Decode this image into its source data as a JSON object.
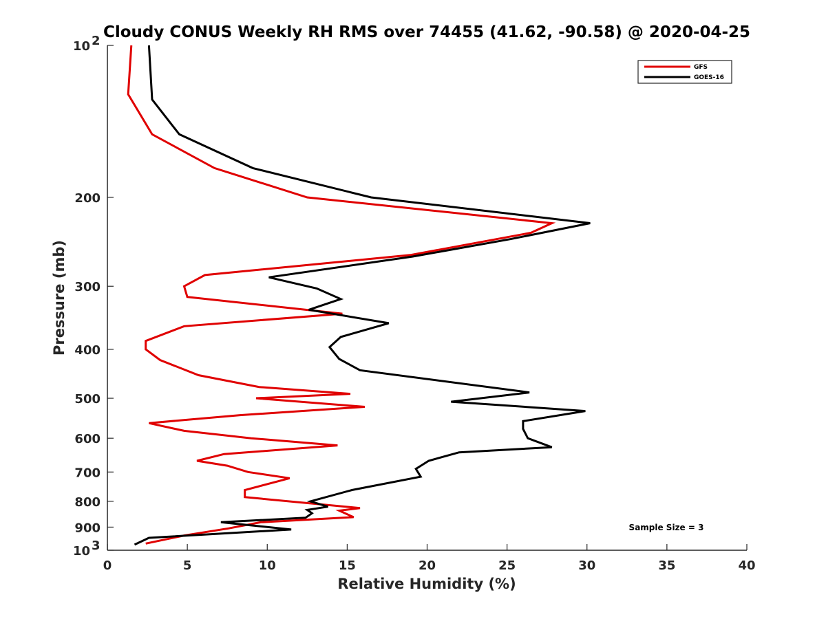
{
  "chart_data": {
    "type": "line",
    "title": "Cloudy CONUS Weekly RH RMS over 74455 (41.62, -90.58) @ 2020-04-25",
    "xlabel": "Relative Humidity (%)",
    "ylabel": "Pressure (mb)",
    "xlim": [
      0,
      40
    ],
    "ylim": [
      100,
      1000
    ],
    "y_scale": "log",
    "y_reversed": true,
    "grid": false,
    "legend_position": "top-right",
    "x_ticks": [
      "0",
      "5",
      "10",
      "15",
      "20",
      "25",
      "30",
      "35",
      "40"
    ],
    "y_ticks": [
      {
        "value": 100,
        "label": "10",
        "sup": "2"
      },
      {
        "value": 200,
        "label": "200"
      },
      {
        "value": 300,
        "label": "300"
      },
      {
        "value": 400,
        "label": "400"
      },
      {
        "value": 500,
        "label": "500"
      },
      {
        "value": 600,
        "label": "600"
      },
      {
        "value": 700,
        "label": "700"
      },
      {
        "value": 800,
        "label": "800"
      },
      {
        "value": 900,
        "label": "900"
      },
      {
        "value": 1000,
        "label": "10",
        "sup": "3"
      }
    ],
    "annotation": "Sample Size = 3",
    "series": [
      {
        "name": "GFS",
        "color": "#e00000",
        "points": [
          [
            1.5,
            100
          ],
          [
            1.3,
            125
          ],
          [
            2.8,
            150
          ],
          [
            6.7,
            175
          ],
          [
            12.5,
            200
          ],
          [
            27.8,
            225
          ],
          [
            26.5,
            235
          ],
          [
            19.0,
            260
          ],
          [
            6.1,
            285
          ],
          [
            4.8,
            300
          ],
          [
            5.0,
            315
          ],
          [
            14.7,
            340
          ],
          [
            4.8,
            360
          ],
          [
            2.4,
            385
          ],
          [
            2.4,
            400
          ],
          [
            3.3,
            420
          ],
          [
            5.7,
            450
          ],
          [
            9.5,
            475
          ],
          [
            15.2,
            490
          ],
          [
            9.3,
            500
          ],
          [
            16.1,
            520
          ],
          [
            8.3,
            540
          ],
          [
            2.6,
            560
          ],
          [
            4.8,
            580
          ],
          [
            9.0,
            600
          ],
          [
            14.4,
            620
          ],
          [
            7.3,
            645
          ],
          [
            5.6,
            665
          ],
          [
            7.5,
            680
          ],
          [
            8.8,
            700
          ],
          [
            11.4,
            720
          ],
          [
            8.6,
            760
          ],
          [
            8.6,
            785
          ],
          [
            15.8,
            825
          ],
          [
            14.5,
            835
          ],
          [
            15.4,
            860
          ],
          [
            9.6,
            880
          ],
          [
            7.6,
            905
          ],
          [
            4.8,
            935
          ],
          [
            2.4,
            970
          ]
        ]
      },
      {
        "name": "GOES-16",
        "color": "#000000",
        "points": [
          [
            2.6,
            100
          ],
          [
            2.8,
            128
          ],
          [
            4.5,
            150
          ],
          [
            9.1,
            175
          ],
          [
            16.5,
            200
          ],
          [
            30.2,
            225
          ],
          [
            25.2,
            242
          ],
          [
            19.1,
            262
          ],
          [
            10.1,
            288
          ],
          [
            13.1,
            303
          ],
          [
            14.6,
            318
          ],
          [
            12.6,
            334
          ],
          [
            17.6,
            355
          ],
          [
            14.6,
            378
          ],
          [
            13.9,
            396
          ],
          [
            14.5,
            418
          ],
          [
            15.8,
            440
          ],
          [
            26.4,
            487
          ],
          [
            21.5,
            508
          ],
          [
            29.9,
            530
          ],
          [
            26.0,
            555
          ],
          [
            26.0,
            575
          ],
          [
            26.3,
            600
          ],
          [
            27.8,
            625
          ],
          [
            22.0,
            640
          ],
          [
            20.1,
            665
          ],
          [
            19.3,
            690
          ],
          [
            19.6,
            715
          ],
          [
            15.3,
            760
          ],
          [
            12.7,
            800
          ],
          [
            13.8,
            820
          ],
          [
            12.5,
            832
          ],
          [
            12.8,
            845
          ],
          [
            12.4,
            862
          ],
          [
            7.1,
            880
          ],
          [
            11.5,
            910
          ],
          [
            2.6,
            945
          ],
          [
            1.7,
            975
          ]
        ]
      }
    ]
  }
}
